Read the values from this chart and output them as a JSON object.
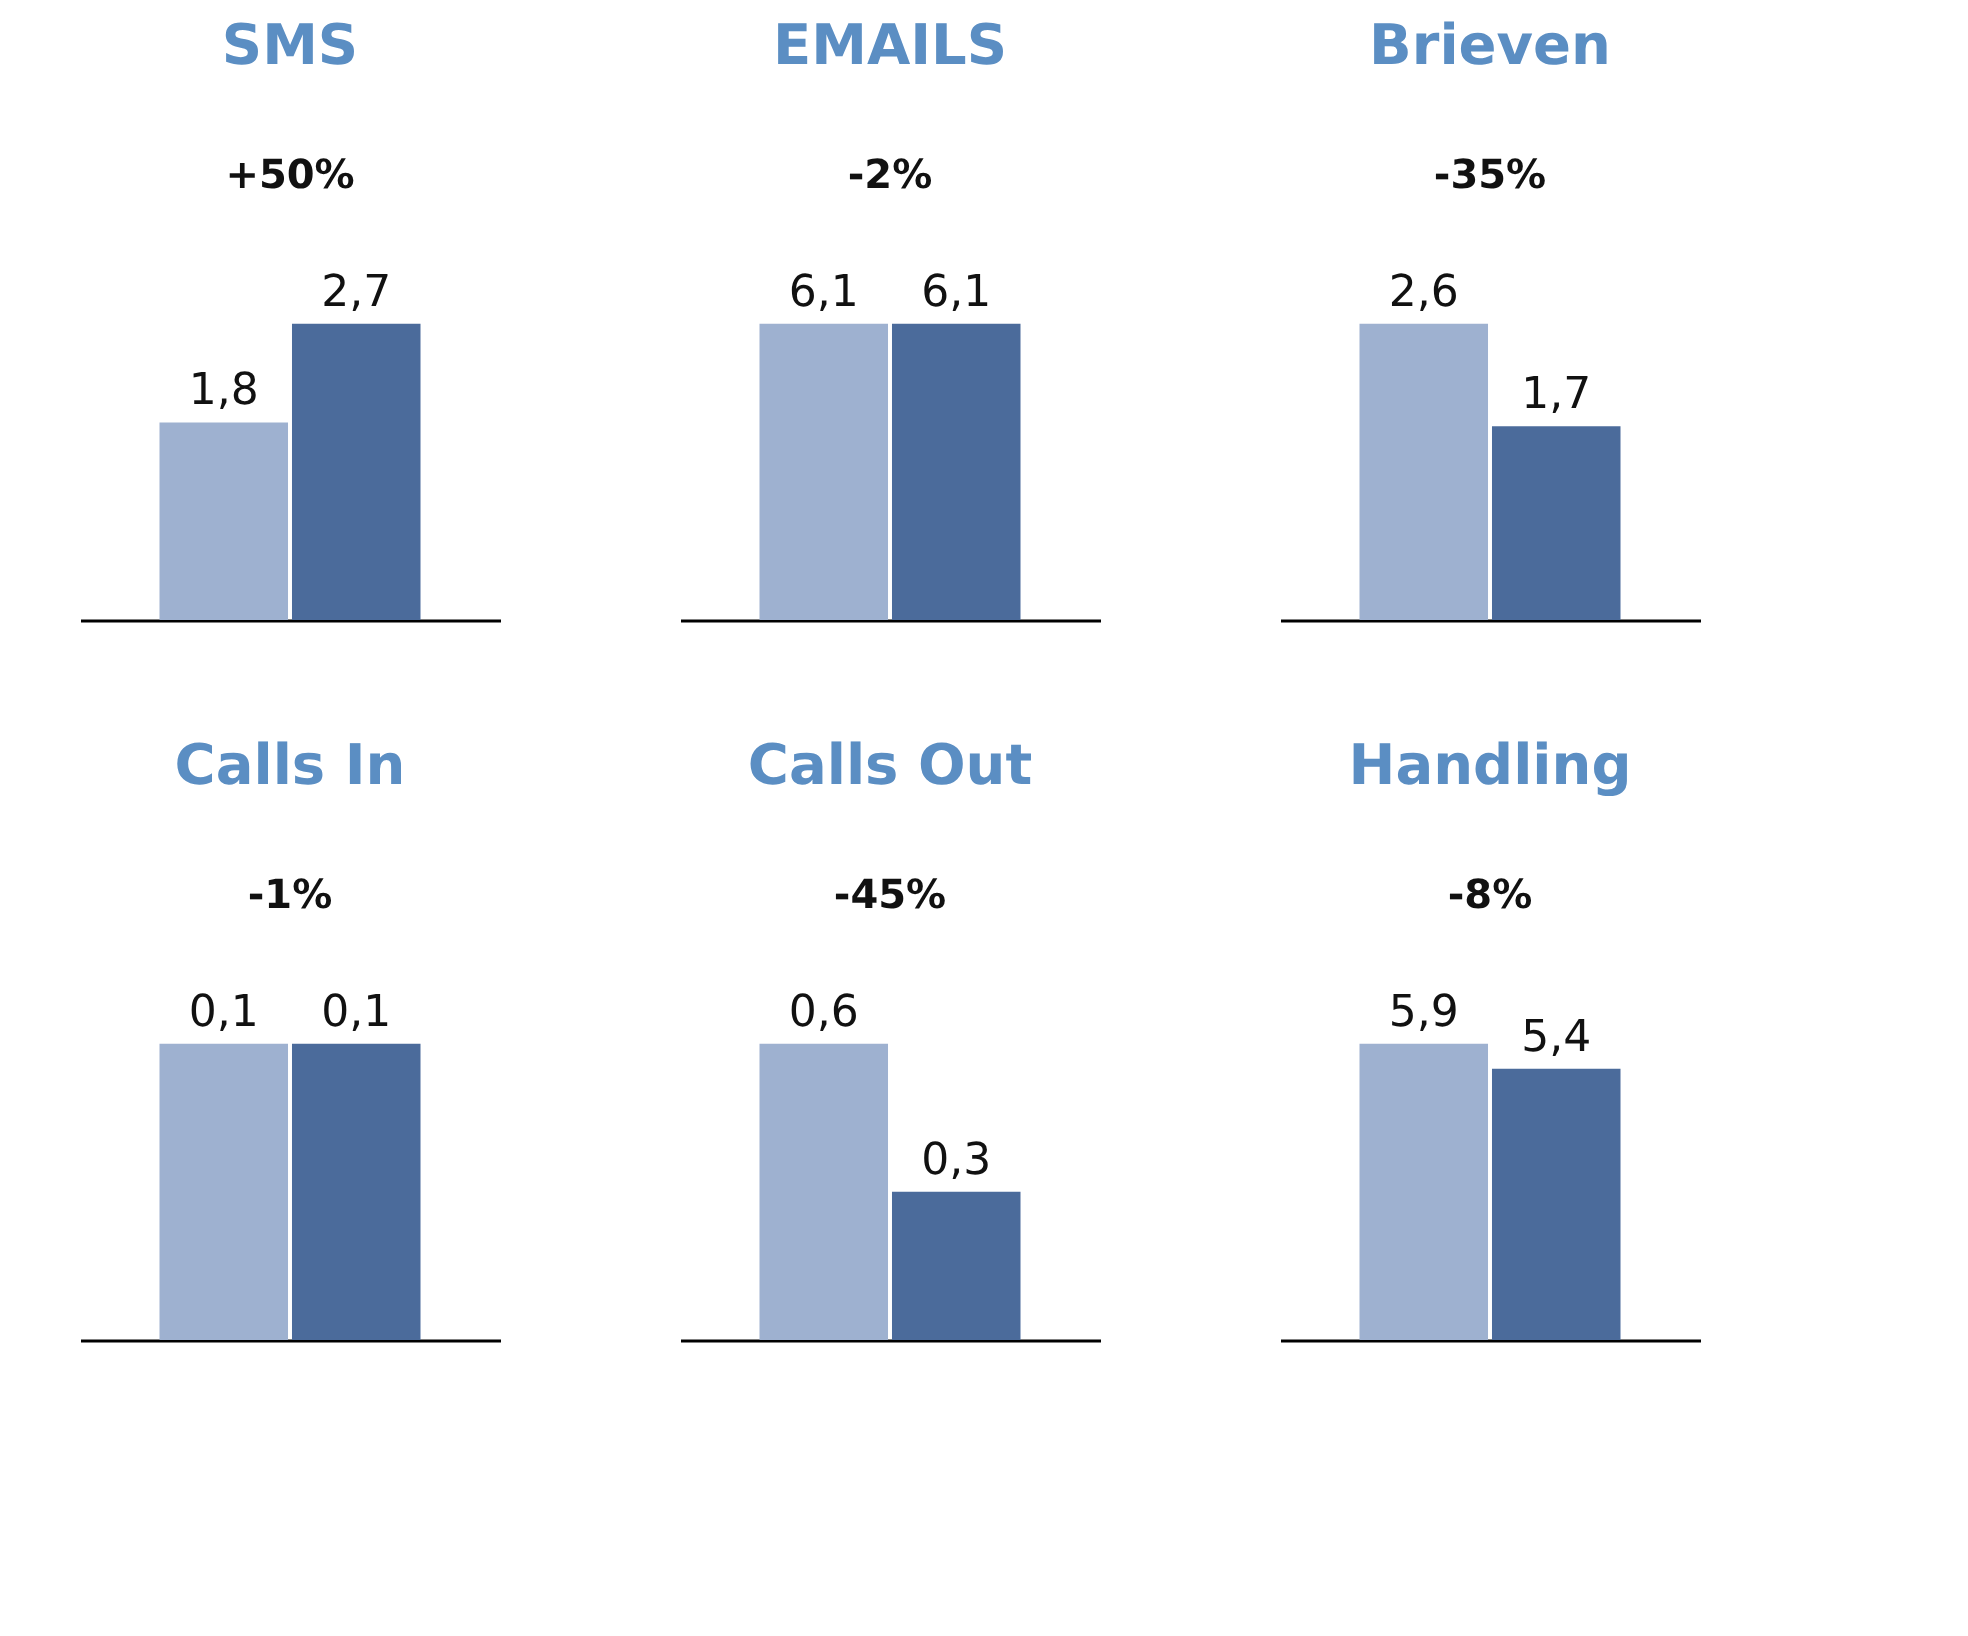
{
  "chart_data": [
    {
      "type": "bar",
      "title": "SMS",
      "categories": [
        null
      ],
      "series": [
        {
          "color": "#9eb1d0",
          "values": [
            1.8
          ],
          "value_labels": [
            "1,8"
          ]
        },
        {
          "color": "#4b6b9b",
          "values": [
            2.7
          ],
          "value_labels": [
            "2,7"
          ]
        }
      ],
      "tick_labels": false,
      "annotations": [
        "+50%"
      ]
    },
    {
      "type": "bar",
      "title": "EMAILS",
      "categories": [
        null
      ],
      "series": [
        {
          "color": "#9eb1d0",
          "values": [
            6.1
          ],
          "value_labels": [
            "6,1"
          ]
        },
        {
          "color": "#4b6b9b",
          "values": [
            6.1
          ],
          "value_labels": [
            "6,1"
          ]
        }
      ],
      "tick_labels": false,
      "annotations": [
        "-2%"
      ]
    },
    {
      "type": "bar",
      "title": "Brieven",
      "categories": [
        null
      ],
      "series": [
        {
          "color": "#9eb1d0",
          "values": [
            2.6
          ],
          "value_labels": [
            "2,6"
          ]
        },
        {
          "color": "#4b6b9b",
          "values": [
            1.7
          ],
          "value_labels": [
            "1,7"
          ]
        }
      ],
      "tick_labels": false,
      "annotations": [
        "-35%"
      ]
    },
    {
      "type": "bar",
      "title": "Calls In",
      "categories": [
        null
      ],
      "series": [
        {
          "color": "#9eb1d0",
          "values": [
            0.1
          ],
          "value_labels": [
            "0,1"
          ]
        },
        {
          "color": "#4b6b9b",
          "values": [
            0.1
          ],
          "value_labels": [
            "0,1"
          ]
        }
      ],
      "tick_labels": false,
      "annotations": [
        "-1%"
      ]
    },
    {
      "type": "bar",
      "title": "Calls Out",
      "categories": [
        null
      ],
      "series": [
        {
          "color": "#9eb1d0",
          "values": [
            0.6
          ],
          "value_labels": [
            "0,6"
          ]
        },
        {
          "color": "#4b6b9b",
          "values": [
            0.3
          ],
          "value_labels": [
            "0,3"
          ]
        }
      ],
      "tick_labels": false,
      "annotations": [
        "-45%"
      ]
    },
    {
      "type": "bar",
      "title": "Handling",
      "categories": [
        null
      ],
      "series": [
        {
          "color": "#9eb1d0",
          "values": [
            5.9
          ],
          "value_labels": [
            "5,9"
          ]
        },
        {
          "color": "#4b6b9b",
          "values": [
            5.4
          ],
          "value_labels": [
            "5,4"
          ]
        }
      ],
      "tick_labels": false,
      "annotations": [
        "-8%"
      ]
    }
  ]
}
